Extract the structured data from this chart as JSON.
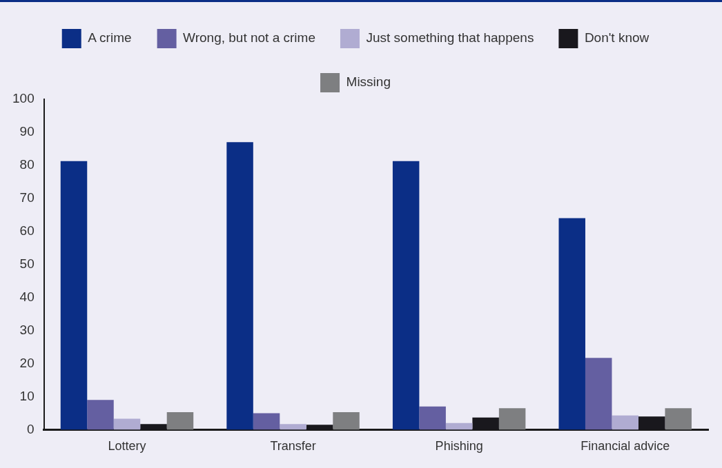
{
  "chart_data": {
    "type": "bar",
    "categories": [
      "Lottery",
      "Transfer",
      "Phishing",
      "Financial advice"
    ],
    "series": [
      {
        "name": "A crime",
        "color": "#0b2e86",
        "values": [
          81.3,
          87,
          81.3,
          64
        ]
      },
      {
        "name": "Wrong, but not a crime",
        "color": "#645fa1",
        "values": [
          9,
          5,
          7,
          21.7
        ]
      },
      {
        "name": "Just something that happens",
        "color": "#b0acd2",
        "values": [
          3.3,
          1.7,
          2,
          4.3
        ]
      },
      {
        "name": "Don't know",
        "color": "#19181d",
        "values": [
          1.7,
          1.5,
          3.7,
          4
        ]
      },
      {
        "name": "Missing",
        "color": "#7e7f81",
        "values": [
          5.3,
          5.3,
          6.5,
          6.5
        ]
      }
    ],
    "ylim": [
      0,
      100
    ],
    "yticks": [
      0,
      10,
      20,
      30,
      40,
      50,
      60,
      70,
      80,
      90,
      100
    ],
    "grid": false,
    "legend": "top"
  }
}
